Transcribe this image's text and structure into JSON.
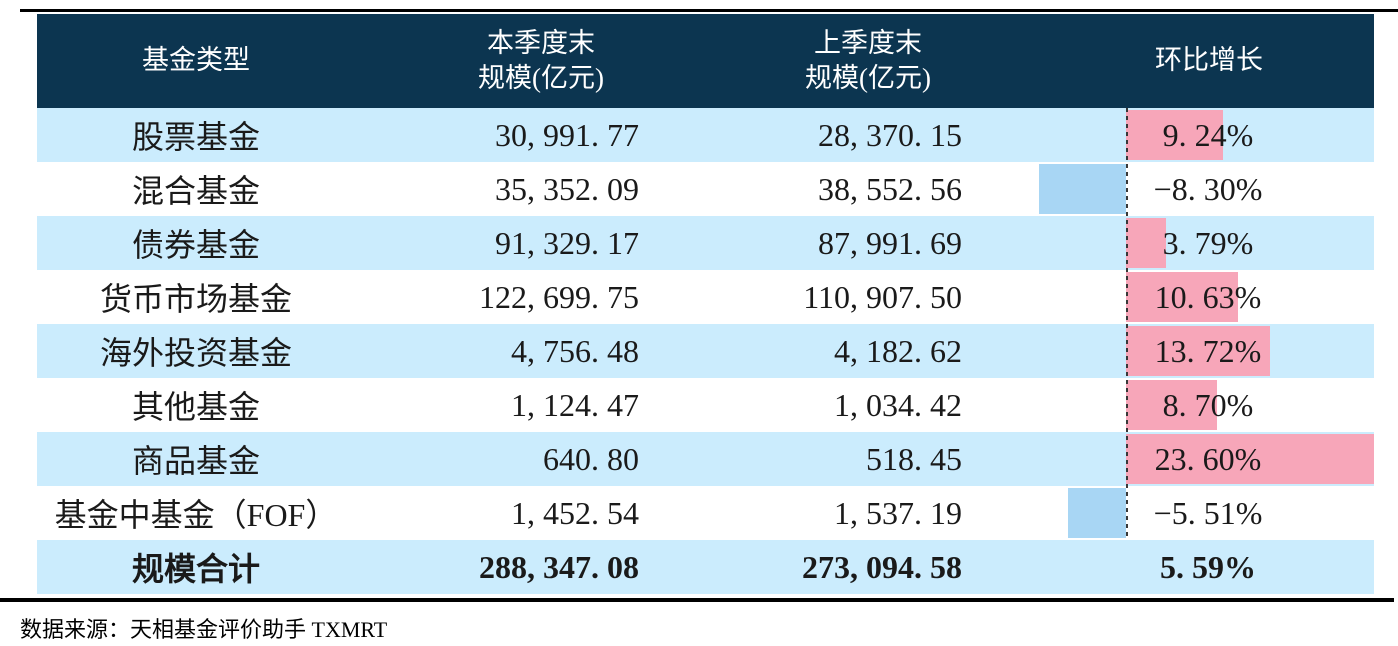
{
  "table": {
    "columns": [
      {
        "line1": "基金类型",
        "line2": ""
      },
      {
        "line1": "本季度末",
        "line2": "规模(亿元)"
      },
      {
        "line1": "上季度末",
        "line2": "规模(亿元)"
      },
      {
        "line1": "环比增长",
        "line2": ""
      }
    ],
    "rows": [
      {
        "type": "股票基金",
        "current": "30, 991. 77",
        "previous": "28, 370. 15",
        "growth_label": "9. 24%",
        "growth_value": 9.24
      },
      {
        "type": "混合基金",
        "current": "35, 352. 09",
        "previous": "38, 552. 56",
        "growth_label": "−8. 30%",
        "growth_value": -8.3
      },
      {
        "type": "债券基金",
        "current": "91, 329. 17",
        "previous": "87, 991. 69",
        "growth_label": "3. 79%",
        "growth_value": 3.79
      },
      {
        "type": "货币市场基金",
        "current": "122, 699. 75",
        "previous": "110, 907. 50",
        "growth_label": "10. 63%",
        "growth_value": 10.63
      },
      {
        "type": "海外投资基金",
        "current": "4, 756. 48",
        "previous": "4, 182. 62",
        "growth_label": "13. 72%",
        "growth_value": 13.72
      },
      {
        "type": "其他基金",
        "current": "1, 124. 47",
        "previous": "1, 034. 42",
        "growth_label": "8. 70%",
        "growth_value": 8.7
      },
      {
        "type": "商品基金",
        "current": "640. 80",
        "previous": "518. 45",
        "growth_label": "23. 60%",
        "growth_value": 23.6
      },
      {
        "type": "基金中基金（FOF）",
        "current": "1, 452. 54",
        "previous": "1, 537. 19",
        "growth_label": "−5. 51%",
        "growth_value": -5.51
      }
    ],
    "total": {
      "type": "规模合计",
      "current": "288, 347. 08",
      "previous": "273, 094. 58",
      "growth_label": "5. 59%"
    }
  },
  "footer": {
    "source": "数据来源：天相基金评价助手 TXMRT"
  },
  "colors": {
    "header_bg": "#0c3550",
    "row_alt_bg": "#cbecfd",
    "positive_bar": "#f7a6b9",
    "negative_bar": "#a8d6f4"
  },
  "chart_data": {
    "type": "table",
    "title": "基金规模环比增长表",
    "columns": [
      "基金类型",
      "本季度末规模(亿元)",
      "上季度末规模(亿元)",
      "环比增长"
    ],
    "rows": [
      {
        "基金类型": "股票基金",
        "本季度末规模": 30991.77,
        "上季度末规模": 28370.15,
        "环比增长_pct": 9.24
      },
      {
        "基金类型": "混合基金",
        "本季度末规模": 35352.09,
        "上季度末规模": 38552.56,
        "环比增长_pct": -8.3
      },
      {
        "基金类型": "债券基金",
        "本季度末规模": 91329.17,
        "上季度末规模": 87991.69,
        "环比增长_pct": 3.79
      },
      {
        "基金类型": "货币市场基金",
        "本季度末规模": 122699.75,
        "上季度末规模": 110907.5,
        "环比增长_pct": 10.63
      },
      {
        "基金类型": "海外投资基金",
        "本季度末规模": 4756.48,
        "上季度末规模": 4182.62,
        "环比增长_pct": 13.72
      },
      {
        "基金类型": "其他基金",
        "本季度末规模": 1124.47,
        "上季度末规模": 1034.42,
        "环比增长_pct": 8.7
      },
      {
        "基金类型": "商品基金",
        "本季度末规模": 640.8,
        "上季度末规模": 518.45,
        "环比增长_pct": 23.6
      },
      {
        "基金类型": "基金中基金（FOF）",
        "本季度末规模": 1452.54,
        "上季度末规模": 1537.19,
        "环比增长_pct": -5.51
      }
    ],
    "total_row": {
      "基金类型": "规模合计",
      "本季度末规模": 288347.08,
      "上季度末规模": 273094.58,
      "环比增长_pct": 5.59
    },
    "embedded_bars": {
      "series": "环比增长",
      "values": [
        9.24,
        -8.3,
        3.79,
        10.63,
        13.72,
        8.7,
        23.6,
        -5.51
      ],
      "positive_color": "#f7a6b9",
      "negative_color": "#a8d6f4",
      "zero_axis": "dashed vertical line in 环比增长 column; positive bars extend right, negative bars extend left"
    },
    "source_note": "数据来源：天相基金评价助手 TXMRT"
  }
}
